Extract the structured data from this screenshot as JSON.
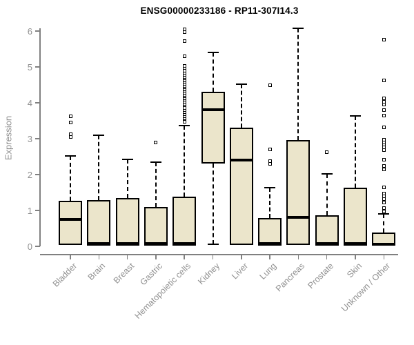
{
  "title": "ENSG00000233186 - RP11-307I14.3",
  "chart_data": {
    "type": "boxplot",
    "title": "ENSG00000233186 - RP11-307I14.3",
    "xlabel": "",
    "ylabel": "Expression",
    "ylim": [
      0,
      6
    ],
    "yticks": [
      0,
      1,
      2,
      3,
      4,
      5,
      6
    ],
    "grid": false,
    "legend": "none",
    "colors": {
      "box_fill": "#EBE5CB",
      "box_stroke": "#000000",
      "axis_line": "#808080",
      "axis_text": "#909090",
      "title_text": "#000000"
    },
    "categories": [
      "Bladder",
      "Brain",
      "Breast",
      "Gastric",
      "Hematopoietic cells",
      "Kidney",
      "Liver",
      "Lung",
      "Pancreas",
      "Prostate",
      "Skin",
      "Unknown / Other"
    ],
    "series": [
      {
        "name": "Bladder",
        "whisker_low": null,
        "q1": 0.04,
        "median": 0.73,
        "q3": 1.26,
        "whisker_high": 2.52,
        "outliers": [
          3.05,
          3.12,
          3.45,
          3.63
        ]
      },
      {
        "name": "Brain",
        "whisker_low": null,
        "q1": 0.02,
        "median": 0.05,
        "q3": 1.28,
        "whisker_high": 3.1,
        "outliers": []
      },
      {
        "name": "Breast",
        "whisker_low": null,
        "q1": 0.02,
        "median": 0.05,
        "q3": 1.35,
        "whisker_high": 2.43,
        "outliers": []
      },
      {
        "name": "Gastric",
        "whisker_low": null,
        "q1": 0.02,
        "median": 0.05,
        "q3": 1.1,
        "whisker_high": 2.35,
        "outliers": [
          2.89
        ]
      },
      {
        "name": "Hematopoietic cells",
        "whisker_low": null,
        "q1": 0.02,
        "median": 0.05,
        "q3": 1.38,
        "whisker_high": 3.37,
        "outliers": [
          3.47,
          3.56,
          3.62,
          3.68,
          3.74,
          3.8,
          3.86,
          3.93,
          3.98,
          4.03,
          4.08,
          4.13,
          4.18,
          4.23,
          4.28,
          4.33,
          4.38,
          4.43,
          4.48,
          4.53,
          4.58,
          4.63,
          4.68,
          4.73,
          4.78,
          4.83,
          4.9,
          4.97,
          5.03,
          5.3,
          5.72,
          5.98,
          6.05
        ]
      },
      {
        "name": "Kidney",
        "whisker_low": 0.05,
        "q1": 2.31,
        "median": 3.79,
        "q3": 4.31,
        "whisker_high": 5.4,
        "outliers": []
      },
      {
        "name": "Liver",
        "whisker_low": null,
        "q1": 0.04,
        "median": 2.39,
        "q3": 3.31,
        "whisker_high": 4.52,
        "outliers": []
      },
      {
        "name": "Lung",
        "whisker_low": null,
        "q1": 0.02,
        "median": 0.05,
        "q3": 0.79,
        "whisker_high": 1.64,
        "outliers": [
          2.3,
          2.38,
          2.7,
          4.5
        ]
      },
      {
        "name": "Pancreas",
        "whisker_low": null,
        "q1": 0.04,
        "median": 0.78,
        "q3": 2.97,
        "whisker_high": 6.07,
        "outliers": []
      },
      {
        "name": "Prostate",
        "whisker_low": null,
        "q1": 0.02,
        "median": 0.05,
        "q3": 0.87,
        "whisker_high": 2.02,
        "outliers": [
          2.62
        ]
      },
      {
        "name": "Skin",
        "whisker_low": null,
        "q1": 0.02,
        "median": 0.05,
        "q3": 1.64,
        "whisker_high": 3.64,
        "outliers": []
      },
      {
        "name": "Unknown / Other",
        "whisker_low": null,
        "q1": 0.01,
        "median": 0.03,
        "q3": 0.38,
        "whisker_high": 0.91,
        "outliers": [
          0.98,
          1.06,
          1.23,
          1.31,
          1.4,
          1.48,
          1.64,
          2.14,
          2.25,
          2.41,
          2.68,
          2.76,
          2.83,
          2.9,
          2.97,
          3.31,
          3.64,
          3.79,
          3.95,
          4.03,
          4.12,
          4.62,
          5.76
        ]
      }
    ]
  }
}
